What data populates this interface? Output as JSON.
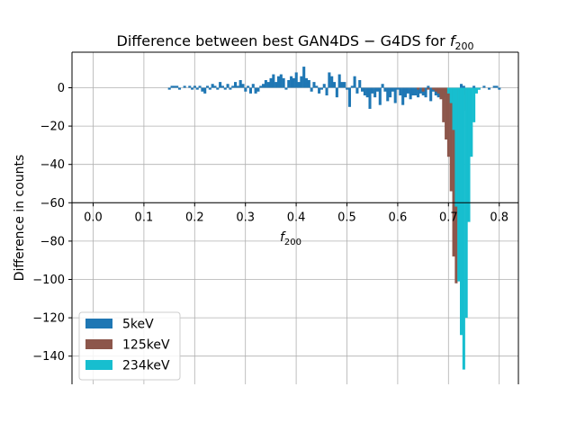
{
  "chart_data": {
    "type": "bar",
    "title": "Difference between best GAN4DS − G4DS for ",
    "title_symbol": "f",
    "title_subscript": "200",
    "xlabel_symbol": "f",
    "xlabel_subscript": "200",
    "ylabel": "Difference in counts",
    "xlim": [
      -0.04,
      0.84
    ],
    "ylim": [
      -155,
      18
    ],
    "xticks": [
      0.0,
      0.1,
      0.2,
      0.3,
      0.4,
      0.5,
      0.6,
      0.7,
      0.8
    ],
    "xtick_labels": [
      "0.0",
      "0.1",
      "0.2",
      "0.3",
      "0.4",
      "0.5",
      "0.6",
      "0.7",
      "0.8"
    ],
    "yticks": [
      0,
      -20,
      -40,
      -60,
      -80,
      -100,
      -120,
      -140
    ],
    "ytick_labels": [
      "0",
      "−20",
      "−40",
      "−60",
      "−80",
      "−100",
      "−120",
      "−140"
    ],
    "x_axis_crossing_y": -60,
    "grid": true,
    "legend_position": "lower-left",
    "series": [
      {
        "name": "5keV",
        "color": "#1f77b4",
        "bin_width": 0.005,
        "points": [
          [
            0.15,
            -1
          ],
          [
            0.155,
            1
          ],
          [
            0.16,
            1
          ],
          [
            0.165,
            1
          ],
          [
            0.17,
            -1
          ],
          [
            0.18,
            1
          ],
          [
            0.19,
            1
          ],
          [
            0.195,
            -1
          ],
          [
            0.2,
            1
          ],
          [
            0.205,
            -1
          ],
          [
            0.21,
            1
          ],
          [
            0.215,
            -2
          ],
          [
            0.22,
            -3
          ],
          [
            0.225,
            1
          ],
          [
            0.23,
            -1
          ],
          [
            0.235,
            2
          ],
          [
            0.24,
            1
          ],
          [
            0.245,
            -1
          ],
          [
            0.25,
            3
          ],
          [
            0.255,
            1
          ],
          [
            0.26,
            -1
          ],
          [
            0.265,
            2
          ],
          [
            0.27,
            -1
          ],
          [
            0.275,
            1
          ],
          [
            0.28,
            3
          ],
          [
            0.285,
            1
          ],
          [
            0.29,
            4
          ],
          [
            0.295,
            2
          ],
          [
            0.3,
            -2
          ],
          [
            0.305,
            1
          ],
          [
            0.31,
            -3
          ],
          [
            0.315,
            2
          ],
          [
            0.32,
            -3
          ],
          [
            0.325,
            -2
          ],
          [
            0.33,
            1
          ],
          [
            0.335,
            2
          ],
          [
            0.34,
            4
          ],
          [
            0.345,
            3
          ],
          [
            0.35,
            5
          ],
          [
            0.355,
            7
          ],
          [
            0.36,
            3
          ],
          [
            0.365,
            6
          ],
          [
            0.37,
            7
          ],
          [
            0.375,
            5
          ],
          [
            0.38,
            -1
          ],
          [
            0.385,
            4
          ],
          [
            0.39,
            6
          ],
          [
            0.395,
            5
          ],
          [
            0.4,
            8
          ],
          [
            0.405,
            3
          ],
          [
            0.41,
            6
          ],
          [
            0.415,
            11
          ],
          [
            0.42,
            5
          ],
          [
            0.425,
            4
          ],
          [
            0.43,
            -2
          ],
          [
            0.435,
            3
          ],
          [
            0.44,
            1
          ],
          [
            0.445,
            -3
          ],
          [
            0.45,
            -1
          ],
          [
            0.455,
            2
          ],
          [
            0.46,
            -4
          ],
          [
            0.465,
            8
          ],
          [
            0.47,
            6
          ],
          [
            0.475,
            3
          ],
          [
            0.48,
            -5
          ],
          [
            0.485,
            7
          ],
          [
            0.49,
            3
          ],
          [
            0.495,
            3
          ],
          [
            0.5,
            -1
          ],
          [
            0.505,
            -10
          ],
          [
            0.51,
            1
          ],
          [
            0.515,
            6
          ],
          [
            0.52,
            -3
          ],
          [
            0.525,
            4
          ],
          [
            0.53,
            -2
          ],
          [
            0.535,
            -4
          ],
          [
            0.54,
            -5
          ],
          [
            0.545,
            -11
          ],
          [
            0.55,
            -3
          ],
          [
            0.555,
            -5
          ],
          [
            0.56,
            -2
          ],
          [
            0.565,
            -9
          ],
          [
            0.57,
            2
          ],
          [
            0.575,
            -2
          ],
          [
            0.58,
            -7
          ],
          [
            0.585,
            -5
          ],
          [
            0.59,
            -2
          ],
          [
            0.595,
            -8
          ],
          [
            0.6,
            -1
          ],
          [
            0.605,
            -4
          ],
          [
            0.61,
            -9
          ],
          [
            0.615,
            -5
          ],
          [
            0.62,
            -3
          ],
          [
            0.625,
            -6
          ],
          [
            0.63,
            -4
          ],
          [
            0.635,
            -4
          ],
          [
            0.64,
            -5
          ],
          [
            0.645,
            -3
          ],
          [
            0.65,
            -4
          ],
          [
            0.655,
            -5
          ],
          [
            0.66,
            1
          ],
          [
            0.665,
            -7
          ],
          [
            0.67,
            -2
          ],
          [
            0.675,
            -4
          ],
          [
            0.68,
            -5
          ],
          [
            0.685,
            -1
          ],
          [
            0.69,
            -4
          ],
          [
            0.695,
            -5
          ],
          [
            0.7,
            -3
          ],
          [
            0.705,
            -1
          ],
          [
            0.71,
            -2
          ],
          [
            0.715,
            -3
          ],
          [
            0.72,
            -1
          ],
          [
            0.725,
            2
          ],
          [
            0.73,
            1
          ],
          [
            0.735,
            -1
          ],
          [
            0.74,
            -1
          ],
          [
            0.745,
            -1
          ],
          [
            0.75,
            1
          ],
          [
            0.76,
            -1
          ],
          [
            0.77,
            1
          ],
          [
            0.78,
            -1
          ],
          [
            0.79,
            1
          ],
          [
            0.795,
            1
          ],
          [
            0.8,
            -1
          ]
        ]
      },
      {
        "name": "125keV",
        "color": "#8c564b",
        "bin_width": 0.005,
        "points": [
          [
            0.64,
            -1
          ],
          [
            0.65,
            -2
          ],
          [
            0.66,
            -1
          ],
          [
            0.67,
            -1
          ],
          [
            0.675,
            -2
          ],
          [
            0.68,
            -3
          ],
          [
            0.685,
            -6
          ],
          [
            0.69,
            -18
          ],
          [
            0.695,
            -27
          ],
          [
            0.7,
            -36
          ],
          [
            0.705,
            -54
          ],
          [
            0.71,
            -88
          ],
          [
            0.715,
            -102
          ],
          [
            0.72,
            -70
          ],
          [
            0.725,
            -47
          ],
          [
            0.73,
            -12
          ],
          [
            0.735,
            -4
          ],
          [
            0.74,
            -1
          ]
        ]
      },
      {
        "name": "234keV",
        "color": "#17becf",
        "bin_width": 0.005,
        "points": [
          [
            0.7,
            -3
          ],
          [
            0.705,
            -8
          ],
          [
            0.71,
            -22
          ],
          [
            0.715,
            -62
          ],
          [
            0.72,
            -101
          ],
          [
            0.725,
            -129
          ],
          [
            0.73,
            -147
          ],
          [
            0.735,
            -120
          ],
          [
            0.74,
            -70
          ],
          [
            0.745,
            -36
          ],
          [
            0.75,
            -18
          ],
          [
            0.755,
            -3
          ],
          [
            0.76,
            -1
          ]
        ]
      }
    ]
  }
}
